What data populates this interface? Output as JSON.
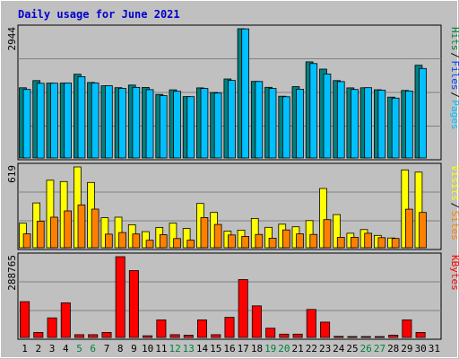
{
  "chart_data": {
    "type": "bar",
    "title": "Daily usage for June 2021",
    "categories": [
      "1",
      "2",
      "3",
      "4",
      "5",
      "6",
      "7",
      "8",
      "9",
      "10",
      "11",
      "12",
      "13",
      "14",
      "15",
      "16",
      "17",
      "18",
      "19",
      "20",
      "21",
      "22",
      "23",
      "24",
      "25",
      "26",
      "27",
      "28",
      "29",
      "30",
      "31"
    ],
    "weekend_days": [
      "5",
      "6",
      "12",
      "13",
      "19",
      "20",
      "26",
      "27"
    ],
    "panels": [
      {
        "ymax_label": "2944",
        "ymax": 2944,
        "legend": [
          {
            "text": "Hits",
            "color": "#008040"
          },
          {
            "text": "Files",
            "color": "#0040ff"
          },
          {
            "text": "Pages",
            "color": "#00c0ff"
          }
        ],
        "series": [
          {
            "name": "Hits",
            "color": "#008080",
            "values": [
              1599,
              1763,
              1705,
              1705,
              1908,
              1720,
              1644,
              1601,
              1661,
              1607,
              1448,
              1552,
              1398,
              1596,
              1490,
              1799,
              2944,
              1743,
              1608,
              1406,
              1625,
              2189,
              2024,
              1763,
              1597,
              1599,
              1553,
              1387,
              1538,
              2112,
              0
            ]
          },
          {
            "name": "Files",
            "color": "#00c0ff",
            "values": [
              1560,
              1702,
              1703,
              1707,
              1852,
              1707,
              1645,
              1584,
              1606,
              1555,
              1420,
              1520,
              1397,
              1583,
              1478,
              1766,
              2940,
              1741,
              1583,
              1394,
              1567,
              2150,
              1911,
              1740,
              1560,
              1600,
              1543,
              1364,
              1525,
              2038,
              0
            ]
          }
        ]
      },
      {
        "ymax_label": "619",
        "ymax": 619,
        "legend": [
          {
            "text": "Visits",
            "color": "#ffff00"
          },
          {
            "text": "Sites",
            "color": "#ff8000"
          }
        ],
        "series": [
          {
            "name": "Visits",
            "color": "#ffff00",
            "values": [
              188,
              343,
              517,
              507,
              619,
              500,
              230,
              234,
              176,
              123,
              155,
              188,
              147,
              339,
              270,
              128,
              135,
              224,
              156,
              180,
              160,
              208,
              454,
              254,
              111,
              139,
              94,
              74,
              596,
              579,
              0
            ]
          },
          {
            "name": "Sites",
            "color": "#ff8000",
            "values": [
              106,
              203,
              234,
              282,
              328,
              296,
              104,
              116,
              105,
              57,
              100,
              70,
              58,
              231,
              178,
              98,
              87,
              102,
              73,
              136,
              106,
              102,
              215,
              79,
              80,
              111,
              77,
              71,
              295,
              270,
              0
            ]
          }
        ]
      },
      {
        "ymax_label": "288765",
        "ymax": 288765,
        "legend": [
          {
            "text": "KBytes",
            "color": "#ff0000"
          }
        ],
        "series": [
          {
            "name": "KBytes",
            "color": "#ff0000",
            "values": [
              128000,
              18000,
              70000,
              124000,
              10000,
              10000,
              18000,
              288765,
              239000,
              6000,
              63000,
              10000,
              8000,
              63000,
              10000,
              72000,
              207000,
              113000,
              33000,
              12000,
              12000,
              100000,
              55000,
              4000,
              2000,
              3000,
              2000,
              8000,
              63000,
              18000,
              0
            ]
          }
        ]
      }
    ]
  }
}
